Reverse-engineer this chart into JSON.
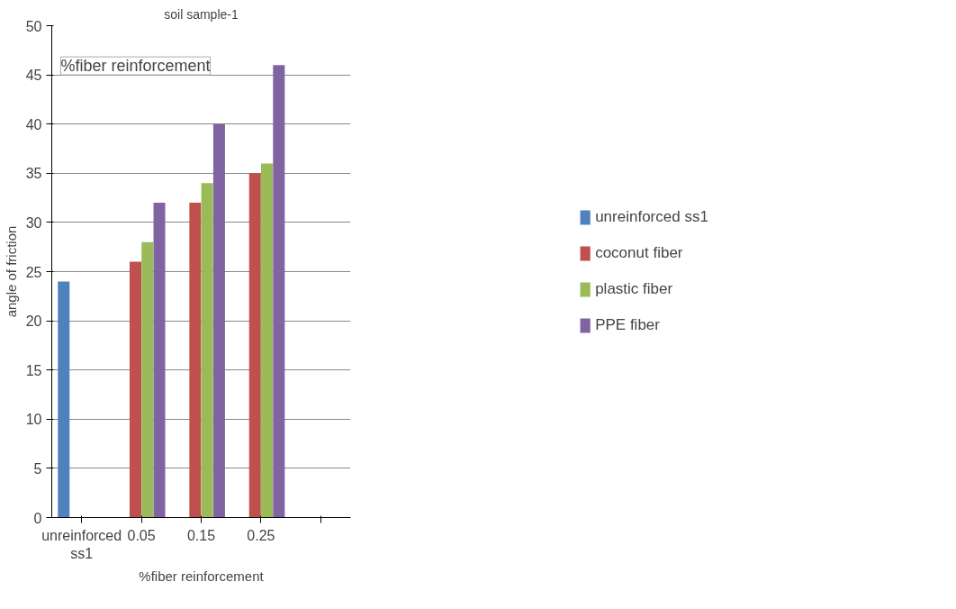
{
  "chart_data": {
    "type": "bar",
    "title": "soil sample-1",
    "xlabel": "%fiber reinforcement",
    "ylabel": "angle of friction",
    "annotations": [
      "%fiber reinforcement"
    ],
    "categories": [
      "unreinforced ss1",
      "0.05",
      "0.15",
      "0.25",
      null
    ],
    "series": [
      {
        "name": "unreinforced ss1",
        "color": "#4f81bd",
        "values": [
          24,
          null,
          null,
          null,
          null
        ]
      },
      {
        "name": "coconut fiber",
        "color": "#c0504d",
        "values": [
          null,
          26,
          32,
          35,
          null
        ]
      },
      {
        "name": "plastic fiber",
        "color": "#9bbb59",
        "values": [
          null,
          28,
          34,
          36,
          null
        ]
      },
      {
        "name": "PPE fiber",
        "color": "#8064a2",
        "values": [
          null,
          32,
          40,
          46,
          null
        ]
      }
    ],
    "ylim": [
      0,
      50
    ],
    "yticks": [
      0,
      5,
      10,
      15,
      20,
      25,
      30,
      35,
      40,
      45,
      50
    ],
    "grid": "y",
    "legend": "right"
  }
}
